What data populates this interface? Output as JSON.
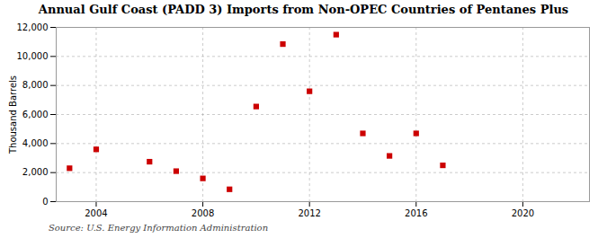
{
  "chart_data": {
    "type": "scatter",
    "title": "Annual Gulf Coast (PADD 3) Imports from Non-OPEC Countries of Pentanes Plus",
    "ylabel": "Thousand Barrels",
    "source": "Source: U.S. Energy Information Administration",
    "x": [
      2003,
      2004,
      2006,
      2007,
      2008,
      2009,
      2010,
      2011,
      2012,
      2013,
      2014,
      2015,
      2016,
      2017
    ],
    "values": [
      2300,
      3600,
      2750,
      2100,
      1600,
      850,
      6550,
      10850,
      7600,
      11500,
      4700,
      3150,
      4700,
      2500
    ],
    "color": "#cc0000",
    "marker": "square",
    "xlim": [
      2002.5,
      2022.5
    ],
    "xticks": [
      2004,
      2008,
      2012,
      2016,
      2020
    ],
    "ylim": [
      0,
      12000
    ],
    "yticks": [
      0,
      {
        "value": 2000,
        "label": "2,000"
      },
      {
        "value": 4000,
        "label": "4,000"
      },
      {
        "value": 6000,
        "label": "6,000"
      },
      {
        "value": 8000,
        "label": "8,000"
      },
      {
        "value": 10000,
        "label": "10,000"
      },
      {
        "value": 12000,
        "label": "12,000"
      }
    ],
    "grid": true
  }
}
